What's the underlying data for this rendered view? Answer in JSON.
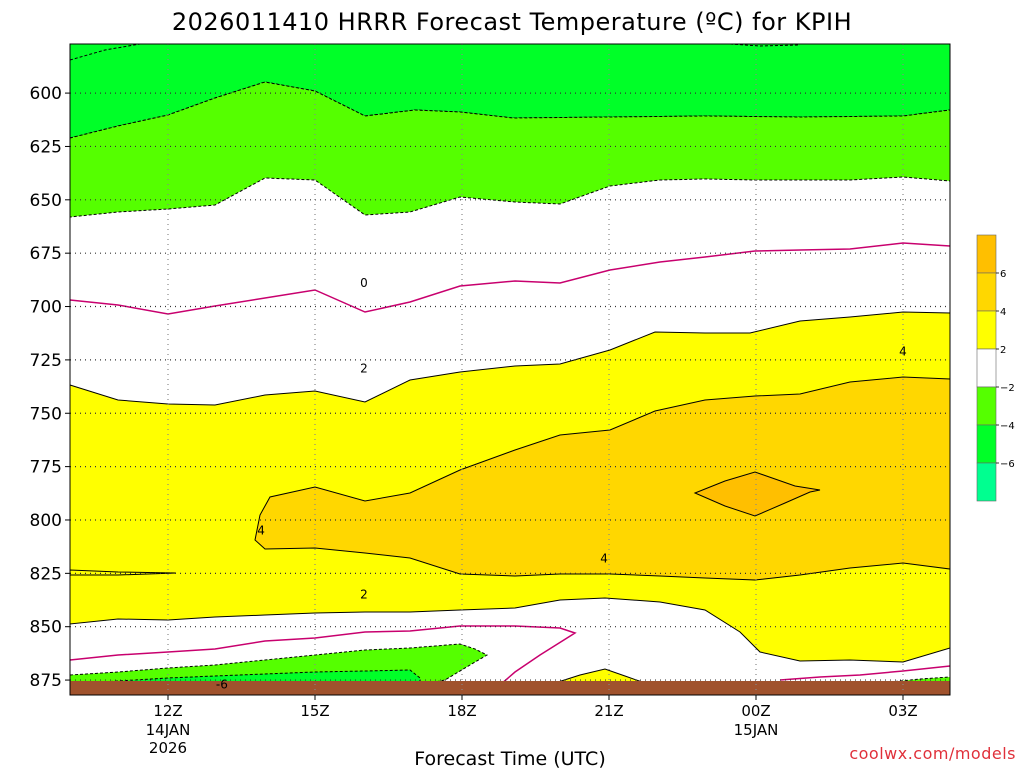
{
  "chart_data": {
    "type": "contour",
    "title": "2026011410 HRRR Forecast Temperature (ºC) for KPIH",
    "xlabel": "Forecast Time (UTC)",
    "ylabel": "",
    "x_ticks": [
      {
        "hour": 12,
        "label": "12Z",
        "sub1": "14JAN",
        "sub2": "2026"
      },
      {
        "hour": 15,
        "label": "15Z",
        "sub1": "",
        "sub2": ""
      },
      {
        "hour": 18,
        "label": "18Z",
        "sub1": "",
        "sub2": ""
      },
      {
        "hour": 21,
        "label": "21Z",
        "sub1": "",
        "sub2": ""
      },
      {
        "hour": 24,
        "label": "00Z",
        "sub1": "15JAN",
        "sub2": ""
      },
      {
        "hour": 27,
        "label": "03Z",
        "sub1": "",
        "sub2": ""
      }
    ],
    "y_ticks": [
      600,
      625,
      650,
      675,
      700,
      725,
      750,
      775,
      800,
      825,
      850,
      875
    ],
    "x_range": [
      10,
      28
    ],
    "y_range": [
      577,
      882
    ],
    "colorbar": {
      "ticks": [
        "6",
        "4",
        "2",
        "−2",
        "−4",
        "−6"
      ],
      "bins": [
        {
          "range": [
            6,
            8
          ],
          "color": "#ffbf00"
        },
        {
          "range": [
            4,
            6
          ],
          "color": "#ffd700"
        },
        {
          "range": [
            2,
            4
          ],
          "color": "#ffff00"
        },
        {
          "range": [
            -2,
            2
          ],
          "color": "#ffffff"
        },
        {
          "range": [
            -4,
            -2
          ],
          "color": "#55ff00"
        },
        {
          "range": [
            -6,
            -4
          ],
          "color": "#00ff28"
        },
        {
          "range": [
            -8,
            -6
          ],
          "color": "#00ff90"
        }
      ]
    },
    "contour_labels": [
      {
        "text": "0",
        "hour": 16,
        "pressure": 689
      },
      {
        "text": "2",
        "hour": 16,
        "pressure": 729
      },
      {
        "text": "4",
        "hour": 13.9,
        "pressure": 805
      },
      {
        "text": "4",
        "hour": 20.9,
        "pressure": 818
      },
      {
        "text": "4",
        "hour": 27,
        "pressure": 721
      },
      {
        "text": "2",
        "hour": 16,
        "pressure": 835
      },
      {
        "text": "-6",
        "hour": 13.1,
        "pressure": 877
      }
    ],
    "ground_color": "#a0522d"
  },
  "credit": "coolwx.com/models"
}
